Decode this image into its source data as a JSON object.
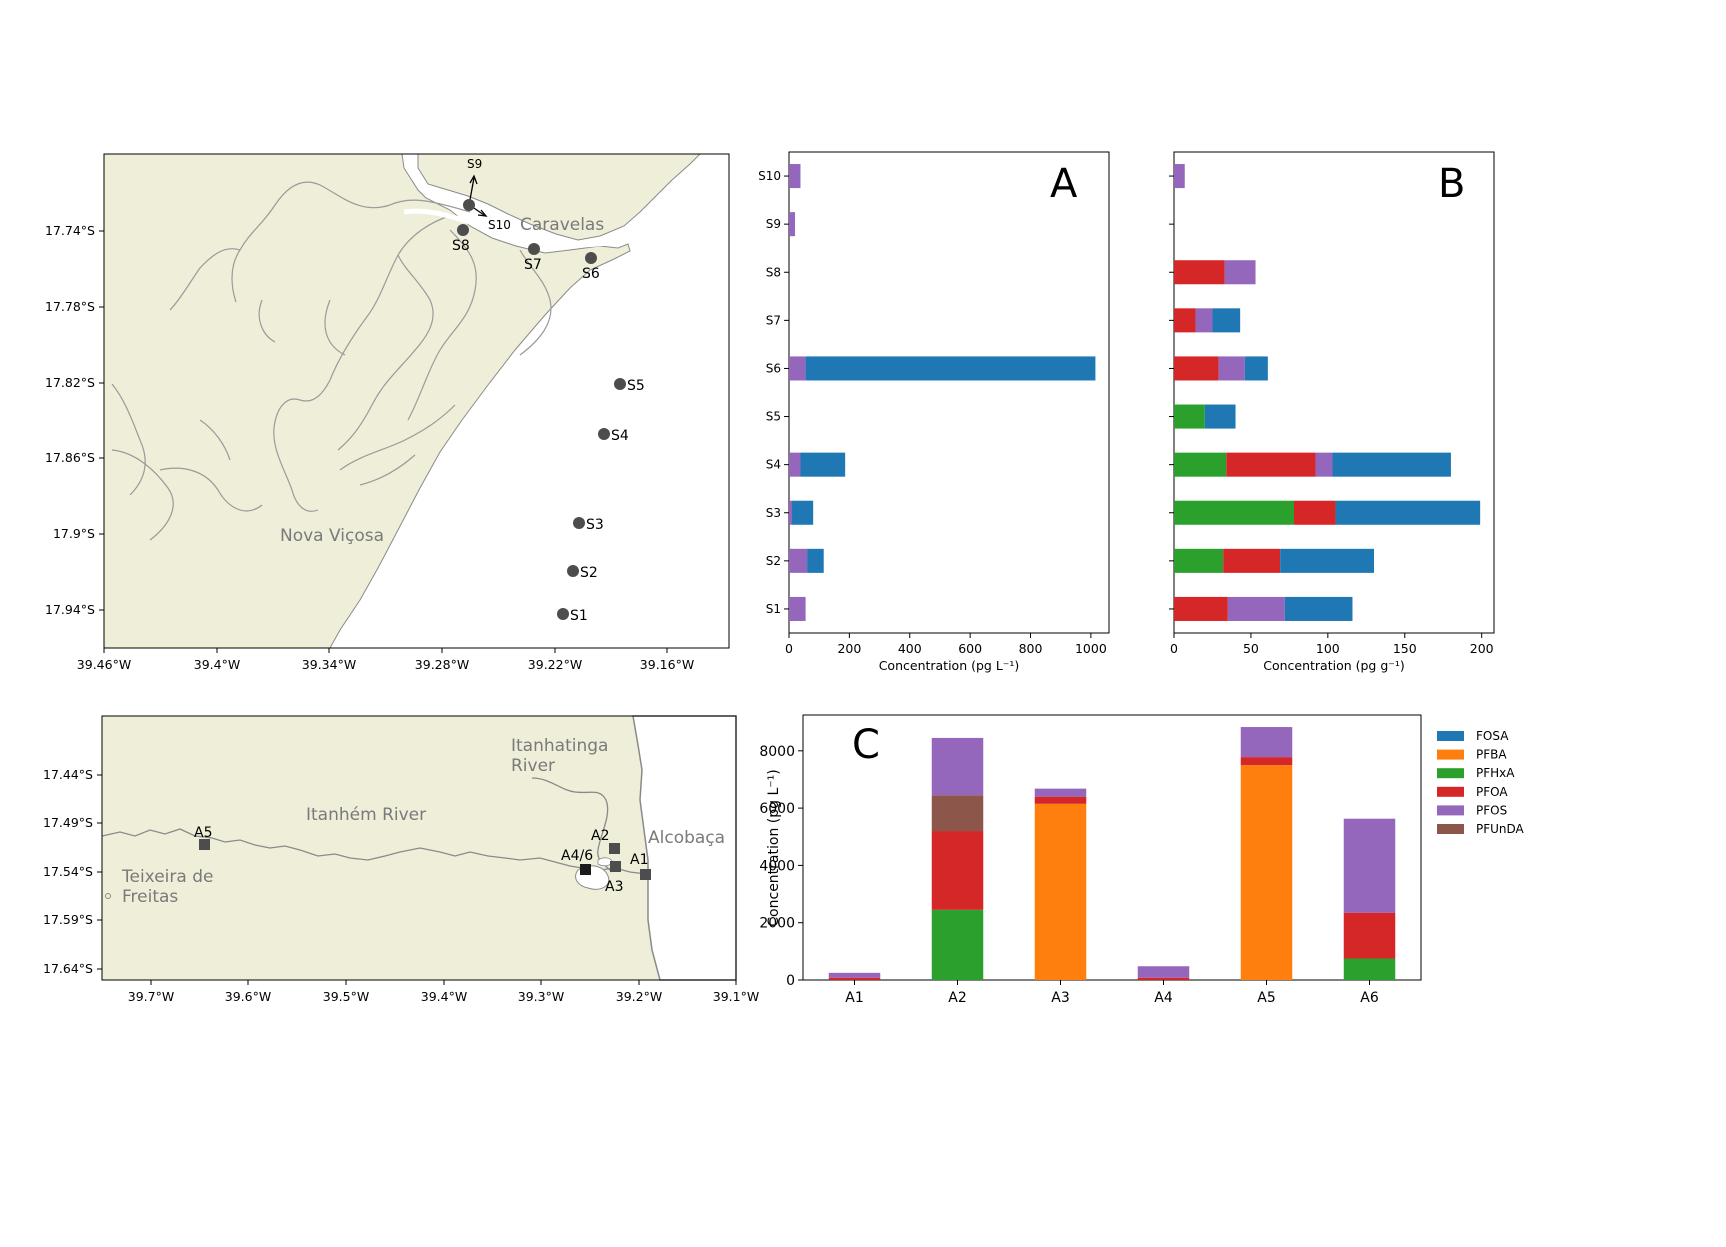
{
  "colors": {
    "land": "#efeed9",
    "coast": "#8a8a8a",
    "station": "#4d4d4d",
    "FOSA": "#1f77b4",
    "PFBA": "#ff7f0e",
    "PFHxA": "#2ca02c",
    "PFOA": "#d62728",
    "PFOS": "#9467bd",
    "PFUnDA": "#8c564b"
  },
  "map_top": {
    "lon_ticks": [
      "39.46°W",
      "39.4°W",
      "39.34°W",
      "39.28°W",
      "39.22°W",
      "39.16°W"
    ],
    "lat_ticks": [
      "17.74°S",
      "17.78°S",
      "17.82°S",
      "17.86°S",
      "17.9°S",
      "17.94°S"
    ],
    "places": {
      "caravelas": "Caravelas",
      "nova_vicosa": "Nova Viçosa"
    },
    "stations": [
      "S1",
      "S2",
      "S3",
      "S4",
      "S5",
      "S6",
      "S7",
      "S8",
      "S9",
      "S10"
    ]
  },
  "map_bottom": {
    "lon_ticks": [
      "39.7°W",
      "39.6°W",
      "39.5°W",
      "39.4°W",
      "39.3°W",
      "39.2°W",
      "39.1°W"
    ],
    "lat_ticks": [
      "17.44°S",
      "17.49°S",
      "17.54°S",
      "17.59°S",
      "17.64°S"
    ],
    "places": {
      "itanhatinga_1": "Itanhatinga",
      "itanhatinga_2": "River",
      "itanhem": "Itanhém River",
      "alcobaca": "Alcobaça",
      "teixeira_1": "Teixeira de",
      "teixeira_2": "Freitas"
    },
    "stations": [
      "A5",
      "A2",
      "A4/6",
      "A1",
      "A3"
    ]
  },
  "legend": {
    "entries": [
      "FOSA",
      "PFBA",
      "PFHxA",
      "PFOA",
      "PFOS",
      "PFUnDA"
    ]
  },
  "chart_data": [
    {
      "type": "bar",
      "orientation": "horizontal",
      "stacked": true,
      "panel": "A",
      "categories": [
        "S1",
        "S2",
        "S3",
        "S4",
        "S5",
        "S6",
        "S7",
        "S8",
        "S9",
        "S10"
      ],
      "series": [
        {
          "name": "PFOS",
          "values": [
            55,
            60,
            10,
            38,
            0,
            55,
            0,
            0,
            20,
            38
          ]
        },
        {
          "name": "FOSA",
          "values": [
            0,
            55,
            70,
            148,
            0,
            960,
            0,
            0,
            0,
            0
          ]
        }
      ],
      "xlabel": "Concentration (pg L⁻¹)",
      "xlim": [
        0,
        1060
      ],
      "xticks": [
        0,
        200,
        400,
        600,
        800,
        1000
      ]
    },
    {
      "type": "bar",
      "orientation": "horizontal",
      "stacked": true,
      "panel": "B",
      "categories": [
        "S1",
        "S2",
        "S3",
        "S4",
        "S5",
        "S6",
        "S7",
        "S8",
        "S9",
        "S10"
      ],
      "series": [
        {
          "name": "PFHxA",
          "values": [
            0,
            32,
            78,
            34,
            20,
            0,
            0,
            0,
            0,
            0
          ]
        },
        {
          "name": "PFOA",
          "values": [
            35,
            37,
            27,
            58,
            0,
            29,
            14,
            33,
            0,
            0
          ]
        },
        {
          "name": "PFOS",
          "values": [
            37,
            0,
            0,
            11,
            0,
            17,
            11,
            20,
            0,
            7
          ]
        },
        {
          "name": "FOSA",
          "values": [
            44,
            61,
            94,
            77,
            20,
            15,
            18,
            0,
            0,
            0
          ]
        }
      ],
      "xlabel": "Concentration (pg g⁻¹)",
      "xlim": [
        0,
        208
      ],
      "xticks": [
        0,
        50,
        100,
        150,
        200
      ]
    },
    {
      "type": "bar",
      "stacked": true,
      "panel": "C",
      "categories": [
        "A1",
        "A2",
        "A3",
        "A4",
        "A5",
        "A6"
      ],
      "series": [
        {
          "name": "FOSA",
          "values": [
            0,
            0,
            0,
            0,
            0,
            0
          ]
        },
        {
          "name": "PFBA",
          "values": [
            0,
            0,
            6150,
            0,
            7500,
            0
          ]
        },
        {
          "name": "PFHxA",
          "values": [
            0,
            2450,
            0,
            0,
            0,
            750
          ]
        },
        {
          "name": "PFOA",
          "values": [
            80,
            2750,
            250,
            80,
            280,
            1600
          ]
        },
        {
          "name": "PFOS",
          "values": [
            170,
            2000,
            280,
            400,
            1050,
            3280
          ]
        },
        {
          "name": "PFUnDA",
          "values": [
            0,
            1250,
            0,
            0,
            0,
            0
          ]
        }
      ],
      "ylabel": "Concentration (pg L⁻¹)",
      "ylim": [
        0,
        9250
      ],
      "yticks": [
        0,
        2000,
        4000,
        6000,
        8000
      ]
    }
  ]
}
